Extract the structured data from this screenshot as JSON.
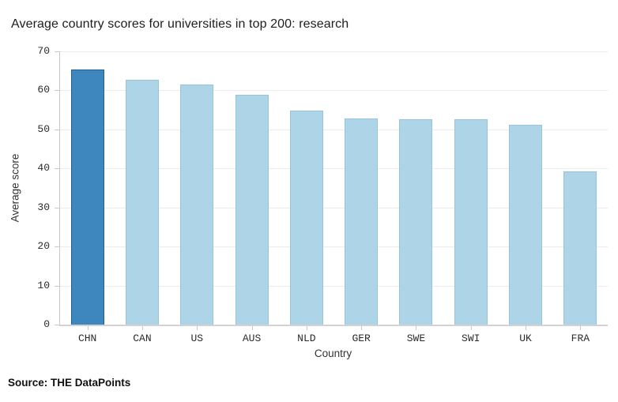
{
  "footer": {
    "source": "Source: THE DataPoints"
  },
  "chart_data": {
    "type": "bar",
    "title": "Average country scores for universities in top 200: research",
    "categories": [
      "CHN",
      "CAN",
      "US",
      "AUS",
      "NLD",
      "GER",
      "SWE",
      "SWI",
      "UK",
      "FRA"
    ],
    "values": [
      65.3,
      62.7,
      61.6,
      58.9,
      54.9,
      52.8,
      52.7,
      52.7,
      51.2,
      39.2
    ],
    "xlabel": "Country",
    "ylabel": "Average score",
    "ylim": [
      0,
      70
    ],
    "ytick_step": 10,
    "yticks": [
      0,
      10,
      20,
      30,
      40,
      50,
      60,
      70
    ],
    "grid": true,
    "legend": "none",
    "highlight_index": 0,
    "colors": {
      "bar_fill": "#aed4e8",
      "bar_border": "#97c3db",
      "highlight_fill": "#3e87be",
      "highlight_border": "#205f8e",
      "grid": "#ececec",
      "axis": "#c9c9c9",
      "text": "#2b2b2b"
    }
  }
}
